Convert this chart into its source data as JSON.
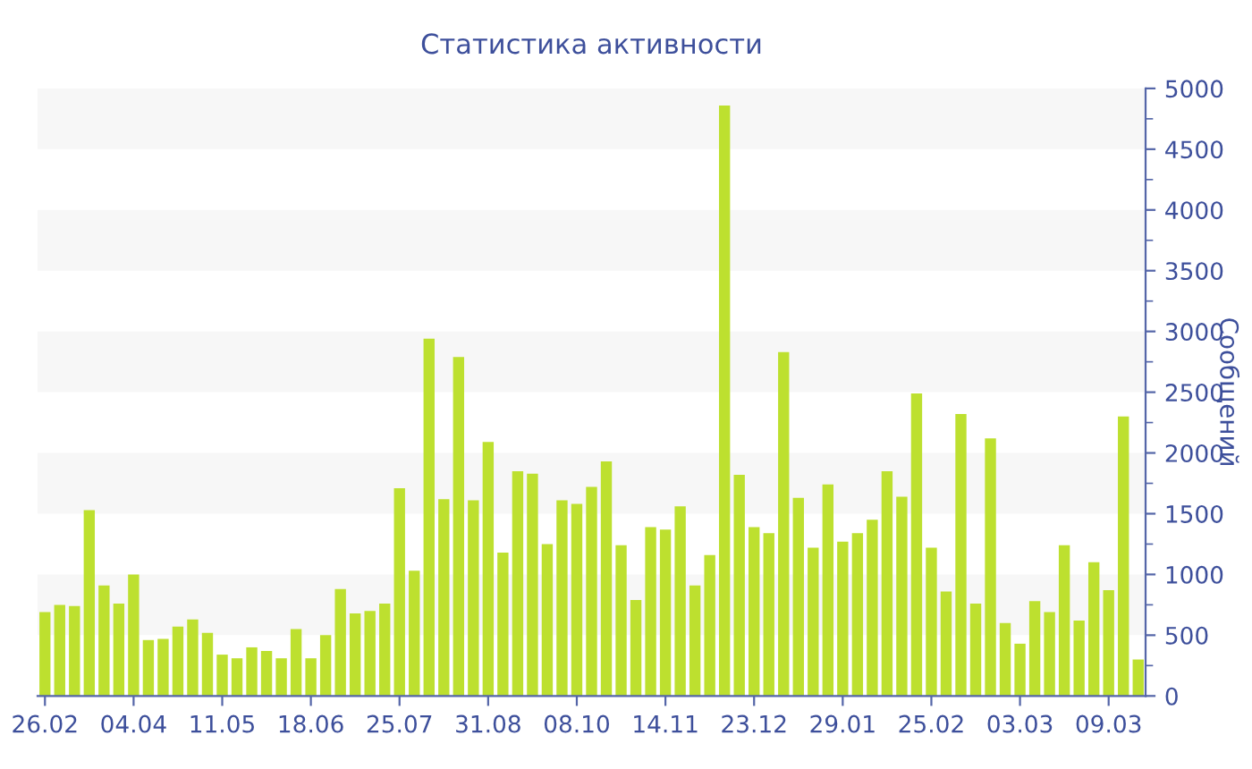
{
  "chart_data": {
    "type": "bar",
    "title": "Статистика активности",
    "ylabel": "Сообщений",
    "categories": [
      "26.02",
      null,
      null,
      null,
      null,
      null,
      "04.04",
      null,
      null,
      null,
      null,
      null,
      "11.05",
      null,
      null,
      null,
      null,
      null,
      "18.06",
      null,
      null,
      null,
      null,
      null,
      "25.07",
      null,
      null,
      null,
      null,
      null,
      "31.08",
      null,
      null,
      null,
      null,
      null,
      "08.10",
      null,
      null,
      null,
      null,
      null,
      "14.11",
      null,
      null,
      null,
      null,
      null,
      "23.12",
      null,
      null,
      null,
      null,
      null,
      "29.01",
      null,
      null,
      null,
      null,
      null,
      "25.02",
      null,
      null,
      null,
      null,
      null,
      "03.03",
      null,
      null,
      null,
      null,
      null,
      "09.03",
      null,
      null
    ],
    "values": [
      690,
      750,
      740,
      1530,
      910,
      760,
      1000,
      460,
      470,
      570,
      630,
      520,
      340,
      310,
      400,
      370,
      310,
      550,
      310,
      500,
      880,
      680,
      700,
      760,
      1710,
      1030,
      2940,
      1620,
      2790,
      1610,
      2090,
      1180,
      1850,
      1830,
      1250,
      1610,
      1580,
      1720,
      1930,
      1240,
      790,
      1390,
      1370,
      1560,
      910,
      1160,
      4860,
      1820,
      1390,
      1340,
      2830,
      1630,
      1220,
      1740,
      1270,
      1340,
      1450,
      1850,
      1640,
      2490,
      1220,
      860,
      2320,
      760,
      2120,
      600,
      430,
      780,
      690,
      1240,
      620,
      1100,
      870,
      2300,
      300
    ],
    "color": "#bde02f",
    "ylim": [
      0,
      5000
    ],
    "yticks": [
      0,
      {
        "value": 250,
        "label": null
      },
      500,
      {
        "value": 750,
        "label": null
      },
      1000,
      {
        "value": 1250,
        "label": null
      },
      1500,
      {
        "value": 1750,
        "label": null
      },
      2000,
      {
        "value": 2250,
        "label": null
      },
      2500,
      {
        "value": 2750,
        "label": null
      },
      3000,
      {
        "value": 3250,
        "label": null
      },
      3500,
      {
        "value": 3750,
        "label": null
      },
      4000,
      {
        "value": 4250,
        "label": null
      },
      4500,
      {
        "value": 4750,
        "label": null
      },
      5000
    ],
    "bands": [
      {
        "axis": "y",
        "from": 500,
        "to": 1000,
        "color": "#f7f7f7"
      },
      {
        "axis": "y",
        "from": 1500,
        "to": 2000,
        "color": "#f7f7f7"
      },
      {
        "axis": "y",
        "from": 2500,
        "to": 3000,
        "color": "#f7f7f7"
      },
      {
        "axis": "y",
        "from": 3500,
        "to": 4000,
        "color": "#f7f7f7"
      },
      {
        "axis": "y",
        "from": 4500,
        "to": 5000,
        "color": "#f7f7f7"
      }
    ]
  }
}
